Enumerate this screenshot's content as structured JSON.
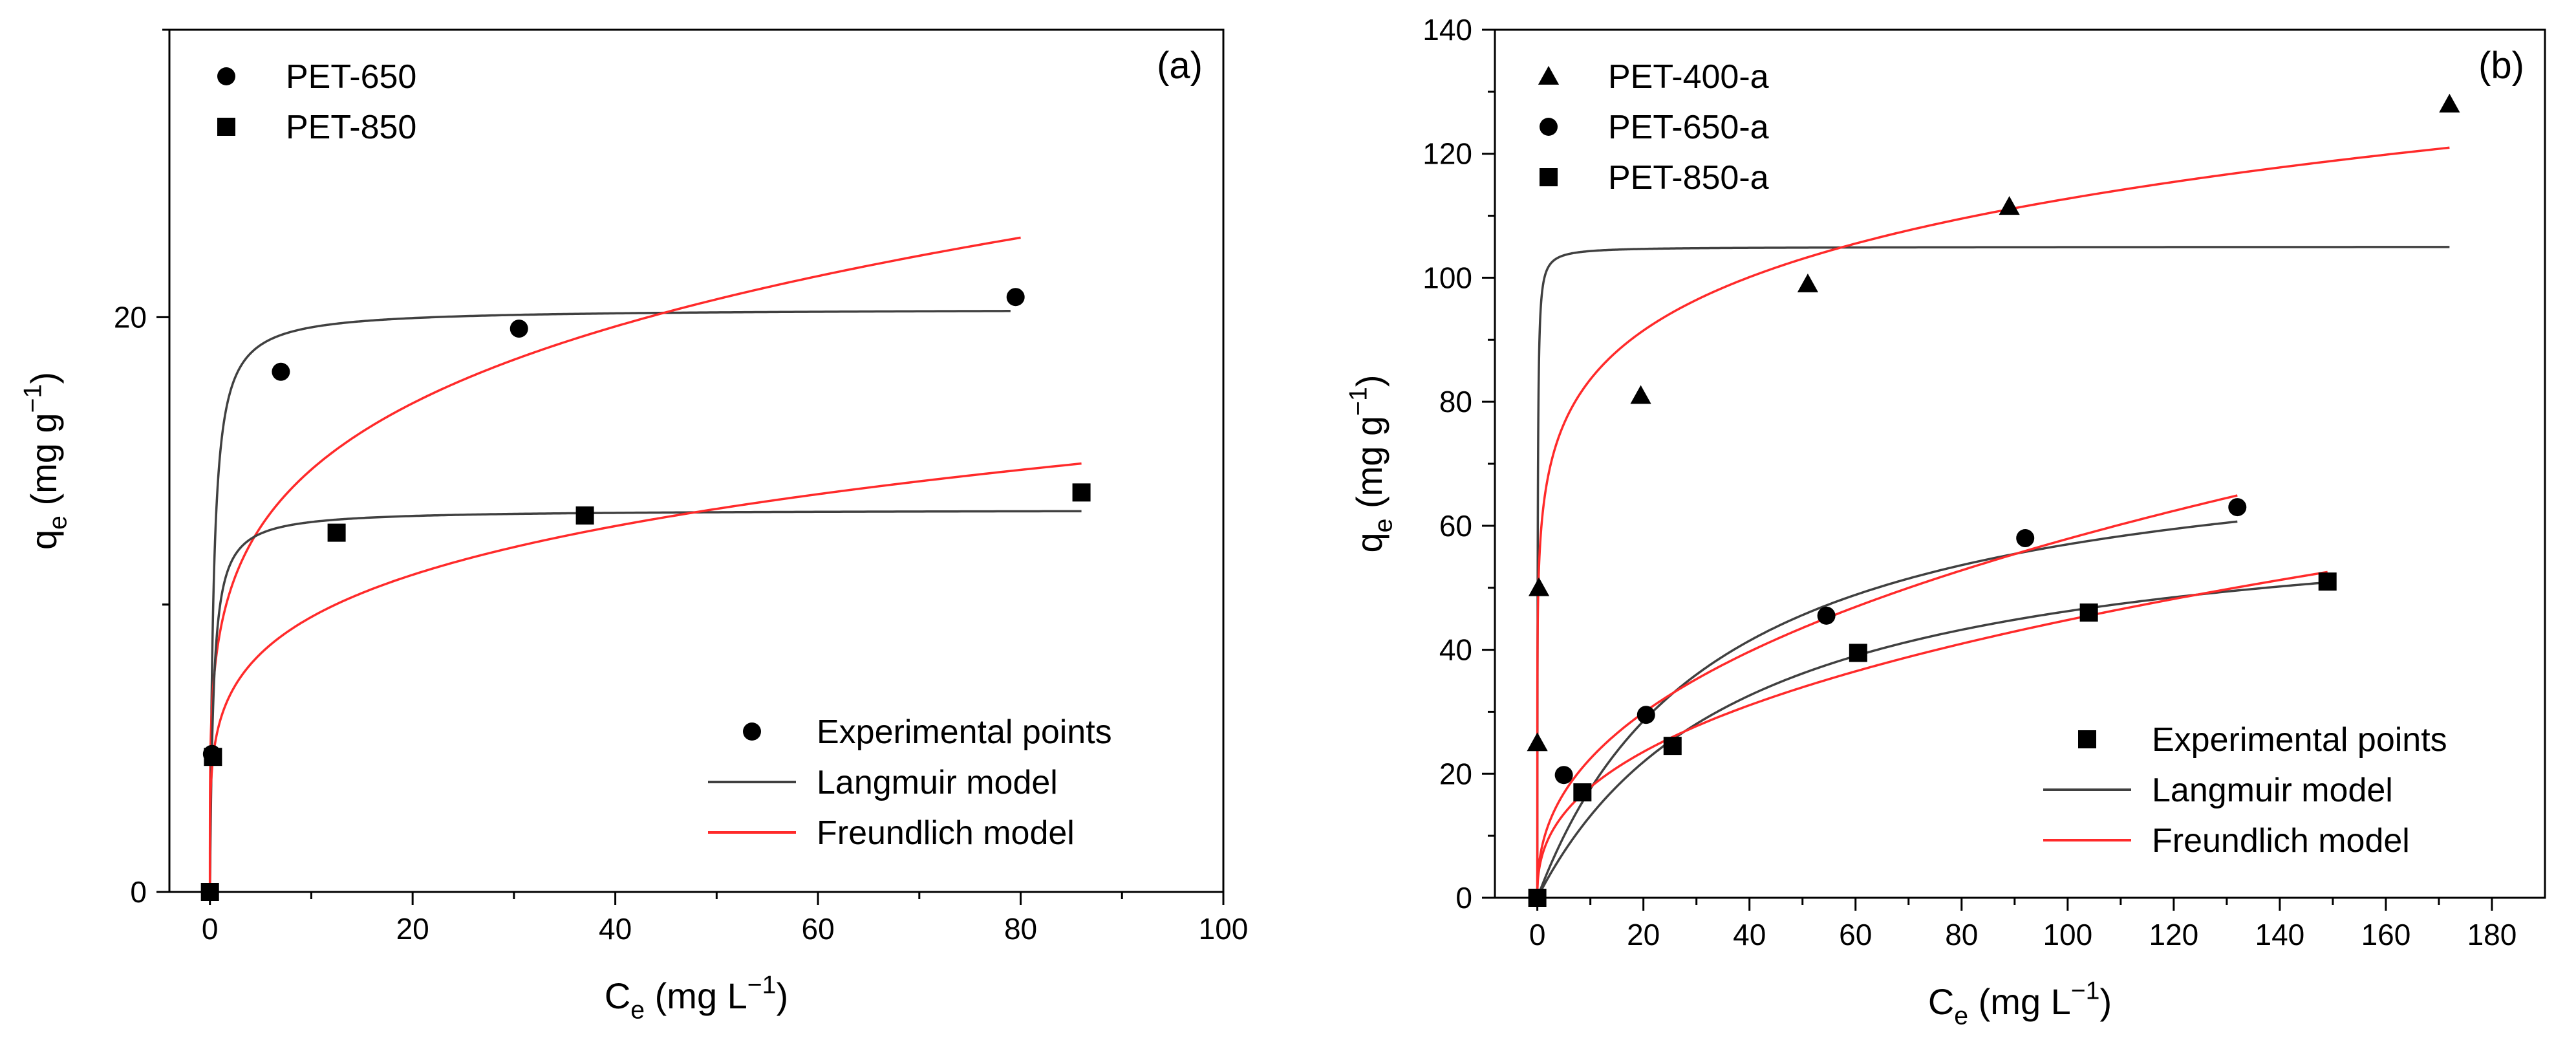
{
  "chart_data": [
    {
      "type": "scatter",
      "panel_label": "(a)",
      "xlabel": {
        "main": "C",
        "sub": "e",
        "unit_pre": " (mg L",
        "unit_sup": "−1",
        "unit_post": ")"
      },
      "ylabel": {
        "main": "q",
        "sub": "e",
        "unit_pre": " (mg g",
        "unit_sup": "−1",
        "unit_post": ")"
      },
      "xlim": [
        -4,
        100
      ],
      "ylim": [
        0,
        30
      ],
      "xticks": [
        0,
        20,
        40,
        60,
        80,
        100
      ],
      "yticks": [
        0,
        20
      ],
      "yminor": [
        10
      ],
      "xtick_labels": [
        "0",
        "20",
        "40",
        "60",
        "80",
        "100"
      ],
      "ytick_labels": [
        "0",
        "20"
      ],
      "grid": false,
      "series_legend": {
        "position": "top-left",
        "entries": [
          {
            "marker": "circle",
            "label": "PET-650"
          },
          {
            "marker": "square",
            "label": "PET-850"
          }
        ]
      },
      "model_legend": {
        "position": "bottom-right",
        "entries": [
          {
            "type": "marker",
            "marker": "circle",
            "label": "Experimental points"
          },
          {
            "type": "line",
            "color": "#404040",
            "label": "Langmuir model"
          },
          {
            "type": "line",
            "color": "#ff2a2a",
            "label": "Freundlich model"
          }
        ]
      },
      "series": [
        {
          "name": "PET-650",
          "marker": "circle",
          "points": [
            [
              0,
              0
            ],
            [
              0.2,
              4.8
            ],
            [
              7,
              18.1
            ],
            [
              30.5,
              19.6
            ],
            [
              79.5,
              20.7
            ]
          ],
          "langmuir": {
            "qmax": 20.3,
            "KL": 3.0,
            "xmax": 79
          },
          "freundlich": {
            "KF": 9.05,
            "n": 4.75,
            "xmax": 80
          }
        },
        {
          "name": "PET-850",
          "marker": "square",
          "points": [
            [
              0,
              0
            ],
            [
              0.3,
              4.7
            ],
            [
              12.5,
              12.5
            ],
            [
              37,
              13.1
            ],
            [
              86,
              13.9
            ]
          ],
          "langmuir": {
            "qmax": 13.3,
            "KL": 3.0,
            "xmax": 86
          },
          "freundlich": {
            "KF": 5.95,
            "n": 4.85,
            "xmax": 86
          }
        }
      ]
    },
    {
      "type": "scatter",
      "panel_label": "(b)",
      "xlabel": {
        "main": "C",
        "sub": "e",
        "unit_pre": " (mg L",
        "unit_sup": "−1",
        "unit_post": ")"
      },
      "ylabel": {
        "main": "q",
        "sub": "e",
        "unit_pre": " (mg g",
        "unit_sup": "−1",
        "unit_post": ")"
      },
      "xlim": [
        -8,
        190
      ],
      "ylim": [
        0,
        140
      ],
      "xticks": [
        0,
        20,
        40,
        60,
        80,
        100,
        120,
        140,
        160,
        180
      ],
      "yticks": [
        0,
        20,
        40,
        60,
        80,
        100,
        120,
        140
      ],
      "xtick_labels": [
        "0",
        "20",
        "40",
        "60",
        "80",
        "100",
        "120",
        "140",
        "160",
        "180"
      ],
      "ytick_labels": [
        "0",
        "20",
        "40",
        "60",
        "80",
        "100",
        "120",
        "140"
      ],
      "grid": false,
      "series_legend": {
        "position": "top-left",
        "entries": [
          {
            "marker": "triangle",
            "label": "PET-400-a"
          },
          {
            "marker": "circle",
            "label": "PET-650-a"
          },
          {
            "marker": "square",
            "label": "PET-850-a"
          }
        ]
      },
      "model_legend": {
        "position": "bottom-right",
        "entries": [
          {
            "type": "marker",
            "marker": "square",
            "label": "Experimental points"
          },
          {
            "type": "line",
            "color": "#404040",
            "label": "Langmuir model"
          },
          {
            "type": "line",
            "color": "#ff2a2a",
            "label": "Freundlich model"
          }
        ]
      },
      "series": [
        {
          "name": "PET-400-a",
          "marker": "triangle",
          "points": [
            [
              0,
              25
            ],
            [
              0.3,
              50
            ],
            [
              19.5,
              81
            ],
            [
              51,
              99
            ],
            [
              89,
              111.5
            ],
            [
              172,
              128
            ]
          ],
          "langmuir": {
            "qmax": 105,
            "KL": 15,
            "xmax": 172
          },
          "freundlich": {
            "KF": 62,
            "n": 7.7,
            "xmax": 172
          }
        },
        {
          "name": "PET-650-a",
          "marker": "circle",
          "points": [
            [
              0,
              0
            ],
            [
              5,
              19.8
            ],
            [
              20.5,
              29.5
            ],
            [
              54.5,
              45.5
            ],
            [
              92,
              58
            ],
            [
              132,
              63
            ]
          ],
          "langmuir": {
            "qmax": 76,
            "KL": 0.03,
            "xmax": 132
          },
          "freundlich": {
            "KF": 8.7,
            "n": 2.43,
            "xmax": 132
          }
        },
        {
          "name": "PET-850-a",
          "marker": "square",
          "points": [
            [
              0,
              0
            ],
            [
              8.5,
              17
            ],
            [
              25.5,
              24.5
            ],
            [
              60.5,
              39.5
            ],
            [
              104,
              46
            ],
            [
              149,
              51
            ]
          ],
          "langmuir": {
            "qmax": 64,
            "KL": 0.026,
            "xmax": 149
          },
          "freundlich": {
            "KF": 7.1,
            "n": 2.5,
            "xmax": 149
          }
        }
      ]
    }
  ]
}
